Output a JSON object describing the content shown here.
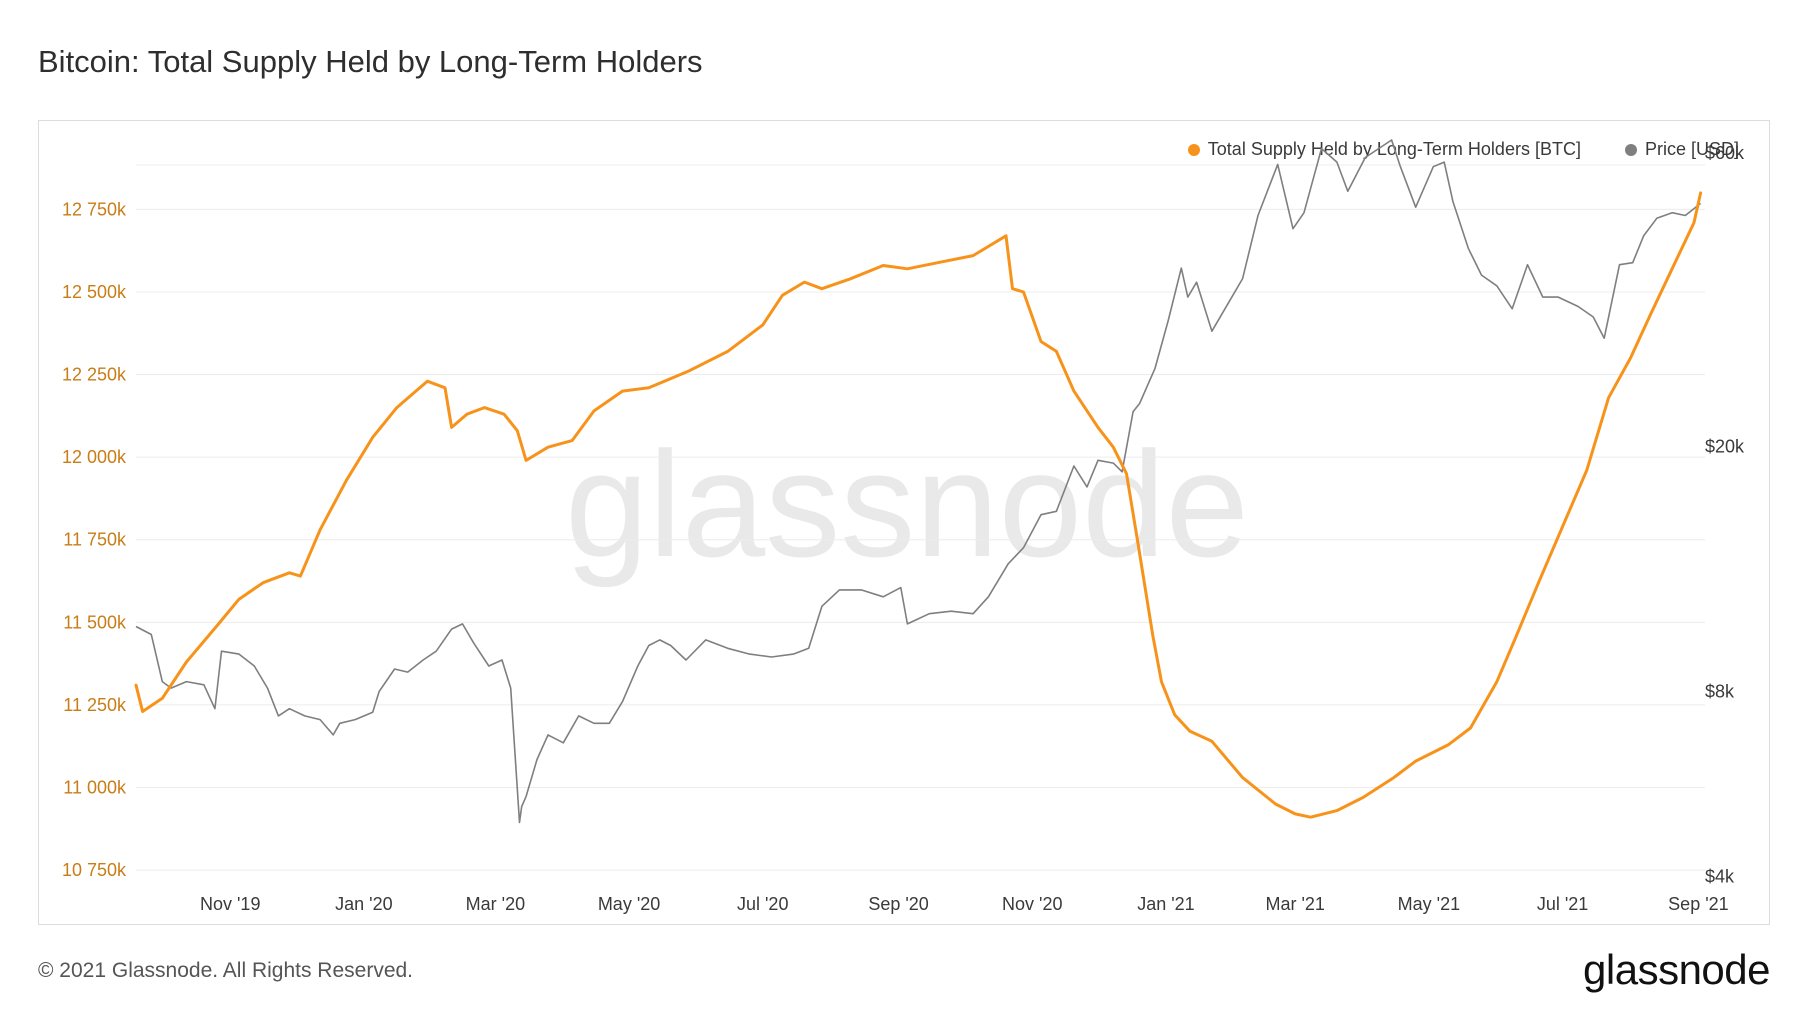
{
  "title": "Bitcoin: Total Supply Held by Long-Term Holders",
  "footer": {
    "copyright": "© 2021 Glassnode. All Rights Reserved.",
    "logo": "glassnode"
  },
  "watermark": "glassnode",
  "colors": {
    "supply": "#f7931a",
    "price": "#7f7f7f",
    "left_axis_text": "#c97d16",
    "grid": "#ececec"
  },
  "chart_data": {
    "type": "line",
    "title": "Bitcoin: Total Supply Held by Long-Term Holders",
    "legend_position": "top-right",
    "grid": true,
    "x_ticks": [
      "Nov '19",
      "Jan '20",
      "Mar '20",
      "May '20",
      "Jul '20",
      "Sep '20",
      "Nov '20",
      "Jan '21",
      "Mar '21",
      "May '21",
      "Jul '21",
      "Sep '21"
    ],
    "y_left": {
      "ticks": [
        "12 750k",
        "12 500k",
        "12 250k",
        "12 000k",
        "11 750k",
        "11 500k",
        "11 250k",
        "11 000k",
        "10 750k"
      ],
      "tick_values": [
        12750,
        12500,
        12250,
        12000,
        11750,
        11500,
        11250,
        11000,
        10750
      ],
      "range": [
        10720,
        12960
      ],
      "unit": "k BTC"
    },
    "y_right": {
      "ticks": [
        "$60k",
        "$20k",
        "$8k",
        "$4k"
      ],
      "tick_values": [
        60000,
        20000,
        8000,
        4000
      ],
      "scale": "log",
      "range": [
        3950,
        63000
      ]
    },
    "series": [
      {
        "name": "Total Supply Held by Long-Term Holders [BTC]",
        "axis": "left",
        "x": [
          "2019-09-19",
          "2019-09-22",
          "2019-10-01",
          "2019-10-12",
          "2019-10-26",
          "2019-11-05",
          "2019-11-16",
          "2019-11-28",
          "2019-12-03",
          "2019-12-12",
          "2019-12-24",
          "2020-01-05",
          "2020-01-16",
          "2020-01-23",
          "2020-01-30",
          "2020-02-07",
          "2020-02-10",
          "2020-02-17",
          "2020-02-25",
          "2020-03-05",
          "2020-03-11",
          "2020-03-15",
          "2020-03-25",
          "2020-04-05",
          "2020-04-15",
          "2020-04-28",
          "2020-05-10",
          "2020-05-28",
          "2020-06-15",
          "2020-07-01",
          "2020-07-10",
          "2020-07-20",
          "2020-07-28",
          "2020-08-10",
          "2020-08-25",
          "2020-09-05",
          "2020-09-20",
          "2020-10-05",
          "2020-10-20",
          "2020-10-23",
          "2020-10-28",
          "2020-11-05",
          "2020-11-12",
          "2020-11-20",
          "2020-12-01",
          "2020-12-08",
          "2020-12-14",
          "2020-12-19",
          "2020-12-26",
          "2020-12-30",
          "2021-01-05",
          "2021-01-12",
          "2021-01-22",
          "2021-02-05",
          "2021-02-20",
          "2021-03-01",
          "2021-03-08",
          "2021-03-20",
          "2021-04-01",
          "2021-04-15",
          "2021-04-25",
          "2021-05-10",
          "2021-05-20",
          "2021-06-01",
          "2021-06-10",
          "2021-06-20",
          "2021-07-01",
          "2021-07-12",
          "2021-07-22",
          "2021-08-01",
          "2021-08-10",
          "2021-08-20",
          "2021-08-30",
          "2021-09-02"
        ],
        "values": [
          11310,
          11230,
          11270,
          11380,
          11490,
          11570,
          11620,
          11650,
          11640,
          11780,
          11930,
          12060,
          12150,
          12190,
          12230,
          12210,
          12090,
          12130,
          12150,
          12130,
          12080,
          11990,
          12030,
          12050,
          12140,
          12200,
          12210,
          12260,
          12320,
          12400,
          12490,
          12530,
          12510,
          12540,
          12580,
          12570,
          12590,
          12610,
          12670,
          12510,
          12500,
          12350,
          12320,
          12200,
          12090,
          12030,
          11950,
          11750,
          11460,
          11320,
          11220,
          11170,
          11140,
          11030,
          10950,
          10920,
          10910,
          10930,
          10970,
          11030,
          11080,
          11130,
          11180,
          11320,
          11460,
          11620,
          11790,
          11960,
          12180,
          12300,
          12430,
          12570,
          12710,
          12800
        ]
      },
      {
        "name": "Price [USD]",
        "axis": "right",
        "x": [
          "2019-09-19",
          "2019-09-26",
          "2019-10-01",
          "2019-10-05",
          "2019-10-12",
          "2019-10-20",
          "2019-10-25",
          "2019-10-28",
          "2019-11-05",
          "2019-11-12",
          "2019-11-18",
          "2019-11-23",
          "2019-11-28",
          "2019-12-05",
          "2019-12-12",
          "2019-12-18",
          "2019-12-21",
          "2019-12-28",
          "2020-01-05",
          "2020-01-08",
          "2020-01-15",
          "2020-01-21",
          "2020-01-28",
          "2020-02-03",
          "2020-02-10",
          "2020-02-15",
          "2020-02-20",
          "2020-02-27",
          "2020-03-04",
          "2020-03-08",
          "2020-03-12",
          "2020-03-13",
          "2020-03-15",
          "2020-03-20",
          "2020-03-25",
          "2020-04-01",
          "2020-04-08",
          "2020-04-15",
          "2020-04-22",
          "2020-04-28",
          "2020-05-05",
          "2020-05-10",
          "2020-05-15",
          "2020-05-20",
          "2020-05-27",
          "2020-06-05",
          "2020-06-15",
          "2020-06-25",
          "2020-07-05",
          "2020-07-15",
          "2020-07-22",
          "2020-07-28",
          "2020-08-05",
          "2020-08-15",
          "2020-08-25",
          "2020-09-02",
          "2020-09-05",
          "2020-09-15",
          "2020-09-25",
          "2020-10-05",
          "2020-10-12",
          "2020-10-21",
          "2020-10-28",
          "2020-11-05",
          "2020-11-12",
          "2020-11-20",
          "2020-11-26",
          "2020-12-01",
          "2020-12-08",
          "2020-12-12",
          "2020-12-17",
          "2020-12-20",
          "2020-12-27",
          "2021-01-02",
          "2021-01-08",
          "2021-01-11",
          "2021-01-15",
          "2021-01-22",
          "2021-01-29",
          "2021-02-05",
          "2021-02-12",
          "2021-02-21",
          "2021-02-28",
          "2021-03-05",
          "2021-03-13",
          "2021-03-20",
          "2021-03-25",
          "2021-04-02",
          "2021-04-14",
          "2021-04-18",
          "2021-04-25",
          "2021-05-03",
          "2021-05-08",
          "2021-05-12",
          "2021-05-19",
          "2021-05-25",
          "2021-06-01",
          "2021-06-08",
          "2021-06-15",
          "2021-06-22",
          "2021-06-29",
          "2021-07-08",
          "2021-07-15",
          "2021-07-20",
          "2021-07-27",
          "2021-08-02",
          "2021-08-07",
          "2021-08-13",
          "2021-08-20",
          "2021-08-26",
          "2021-09-02"
        ],
        "values": [
          10200,
          9900,
          8300,
          8100,
          8300,
          8200,
          7500,
          9300,
          9200,
          8800,
          8100,
          7300,
          7500,
          7300,
          7200,
          6800,
          7100,
          7200,
          7400,
          8000,
          8700,
          8600,
          9000,
          9300,
          10100,
          10300,
          9600,
          8800,
          9000,
          8100,
          4900,
          5200,
          5400,
          6200,
          6800,
          6600,
          7300,
          7100,
          7100,
          7700,
          8800,
          9500,
          9700,
          9500,
          9000,
          9700,
          9400,
          9200,
          9100,
          9200,
          9400,
          11000,
          11700,
          11700,
          11400,
          11800,
          10300,
          10700,
          10800,
          10700,
          11400,
          12900,
          13700,
          15500,
          15700,
          18600,
          17200,
          19000,
          18800,
          18200,
          22800,
          23500,
          26800,
          32000,
          39000,
          35000,
          37000,
          30800,
          34000,
          37500,
          47500,
          57500,
          45200,
          48000,
          61000,
          58000,
          52000,
          59000,
          63000,
          57000,
          49000,
          57000,
          58000,
          50000,
          42000,
          38000,
          36500,
          33500,
          39500,
          35000,
          35000,
          33800,
          32500,
          30000,
          39500,
          39800,
          44000,
          47000,
          48000,
          47500,
          49700
        ]
      }
    ]
  }
}
